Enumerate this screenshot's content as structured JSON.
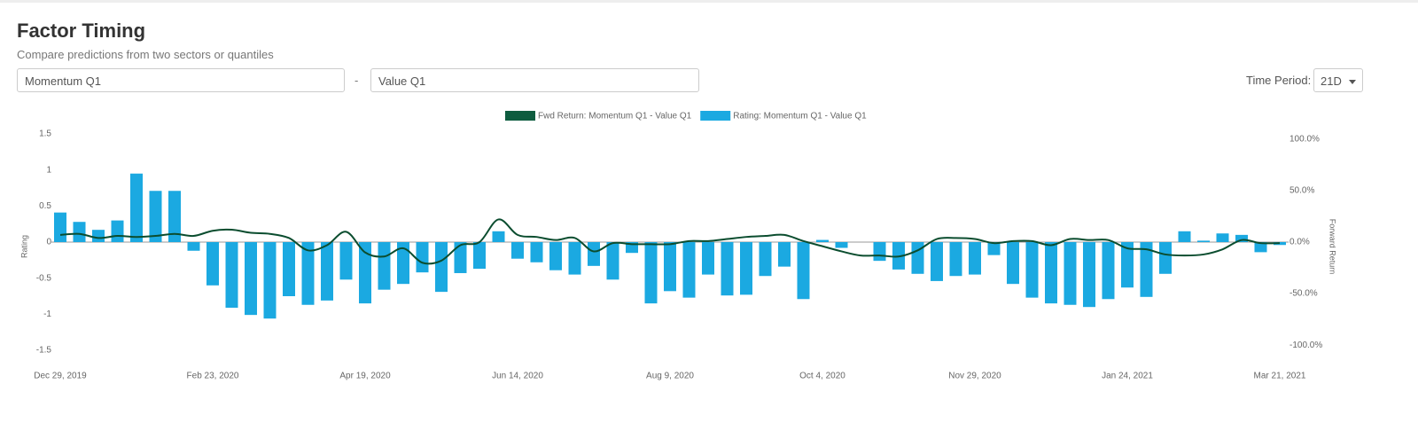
{
  "header": {
    "title": "Factor Timing",
    "subtitle": "Compare predictions from two sectors or quantiles"
  },
  "controls": {
    "sector_a": "Momentum Q1",
    "separator": "-",
    "sector_b": "Value Q1",
    "time_period_label": "Time Period:",
    "time_period_value": "21D"
  },
  "chart_data": {
    "type": "combo",
    "categories": [
      "Dec 29, 2019",
      null,
      null,
      null,
      null,
      null,
      null,
      null,
      "Feb 23, 2020",
      null,
      null,
      null,
      null,
      null,
      null,
      null,
      "Apr 19, 2020",
      null,
      null,
      null,
      null,
      null,
      null,
      null,
      "Jun 14, 2020",
      null,
      null,
      null,
      null,
      null,
      null,
      null,
      "Aug 9, 2020",
      null,
      null,
      null,
      null,
      null,
      null,
      null,
      "Oct 4, 2020",
      null,
      null,
      null,
      null,
      null,
      null,
      null,
      "Nov 29, 2020",
      null,
      null,
      null,
      null,
      null,
      null,
      null,
      "Jan 24, 2021",
      null,
      null,
      null,
      null,
      null,
      null,
      null,
      "Mar 21, 2021"
    ],
    "series": [
      {
        "name": "Fwd Return: Momentum Q1 - Value Q1",
        "type": "line",
        "axis": "y2",
        "color": "#0b4d2f",
        "values": [
          7,
          8,
          4,
          6,
          5,
          6,
          8,
          6,
          11,
          12,
          9,
          8,
          4,
          -8,
          -3,
          10,
          -10,
          -14,
          -6,
          -20,
          -18,
          -3,
          0,
          22,
          7,
          5,
          2,
          4,
          -9,
          -1,
          -2,
          -2,
          -2,
          1,
          1,
          3,
          5,
          6,
          7,
          1,
          -4,
          -9,
          -13,
          -13,
          -14,
          -8,
          3,
          4,
          3,
          -1,
          1,
          1,
          -3,
          3,
          2,
          2,
          -6,
          -7,
          -12,
          -13,
          -12,
          -7,
          2,
          -1,
          -1
        ]
      },
      {
        "name": "Rating: Momentum Q1 - Value Q1",
        "type": "bar",
        "color": "#1ba9e1",
        "values": [
          0.41,
          0.28,
          0.17,
          0.3,
          0.95,
          0.71,
          0.71,
          -0.12,
          -0.6,
          -0.91,
          -1.01,
          -1.06,
          -0.75,
          -0.87,
          -0.81,
          -0.52,
          -0.85,
          -0.66,
          -0.58,
          -0.42,
          -0.69,
          -0.43,
          -0.37,
          0.15,
          -0.23,
          -0.28,
          -0.39,
          -0.45,
          -0.33,
          -0.52,
          -0.15,
          -0.85,
          -0.68,
          -0.77,
          -0.45,
          -0.74,
          -0.73,
          -0.47,
          -0.34,
          -0.79,
          0.03,
          -0.08,
          0,
          -0.26,
          -0.38,
          -0.44,
          -0.54,
          -0.47,
          -0.45,
          -0.18,
          -0.58,
          -0.77,
          -0.85,
          -0.87,
          -0.9,
          -0.79,
          -0.63,
          -0.76,
          -0.44,
          0.15,
          0.02,
          0.12,
          0.1,
          -0.14,
          -0.04
        ]
      }
    ],
    "ylabel": "Rating",
    "y2label": "Forward Return",
    "ylim": [
      -1.5,
      1.5
    ],
    "yticks": [
      1.5,
      1,
      0.5,
      0,
      -0.5,
      -1,
      -1.5
    ],
    "y2lim": [
      -105,
      105
    ],
    "y2ticks": [
      {
        "value": 100,
        "label": "100.0%"
      },
      {
        "value": 50,
        "label": "50.0%"
      },
      {
        "value": 0,
        "label": "0.0%"
      },
      {
        "value": -50,
        "label": "-50.0%"
      },
      {
        "value": -100,
        "label": "-100.0%"
      }
    ],
    "grid": false
  }
}
